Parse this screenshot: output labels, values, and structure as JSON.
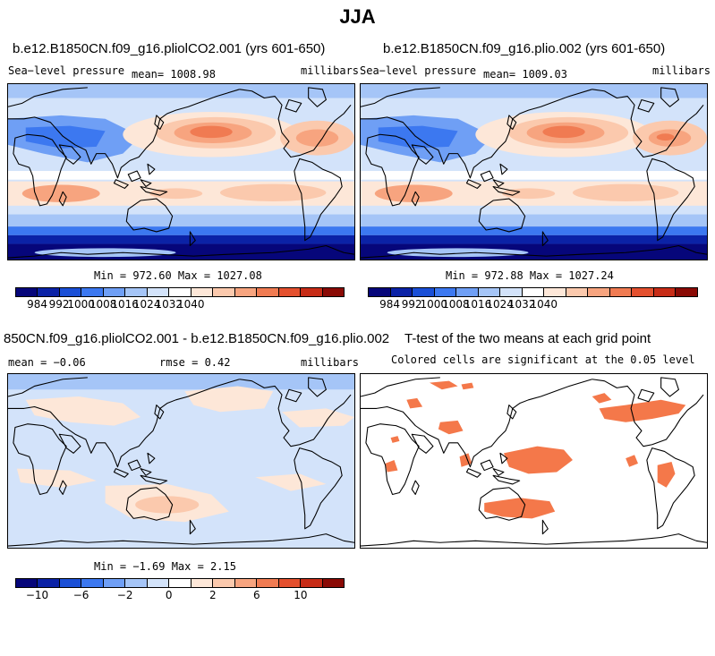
{
  "figure_title": "JJA",
  "panels": {
    "top_left": {
      "title": "b.e12.B1850CN.f09_g16.pliolCO2.001 (yrs 601-650)",
      "variable": "Sea−level pressure",
      "mean": "mean= 1008.98",
      "units": "millibars",
      "minmax": "Min = 972.60 Max = 1027.08"
    },
    "top_right": {
      "title": "b.e12.B1850CN.f09_g16.plio.002 (yrs 601-650)",
      "variable": "Sea−level pressure",
      "mean": "mean= 1009.03",
      "units": "millibars",
      "minmax": "Min = 972.88 Max = 1027.24"
    },
    "bottom_left": {
      "title": "850CN.f09_g16.pliolCO2.001 - b.e12.B1850CN.f09_g16.plio.002",
      "mean": "mean =  −0.06",
      "rmse": "rmse =   0.42",
      "units": "millibars",
      "minmax": "Min =  −1.69 Max =   2.15"
    },
    "bottom_right": {
      "title": "T-test of the two means at each grid point",
      "subtitle": "Colored cells are significant at the 0.05 level"
    }
  },
  "colorbar_slp": {
    "colors": [
      "#06067a",
      "#0b22a6",
      "#1a4fd6",
      "#3c78f0",
      "#6f9ff5",
      "#a5c5f7",
      "#d3e3fa",
      "#ffffff",
      "#fde7d8",
      "#fbc9ad",
      "#f7a47f",
      "#f07b52",
      "#e4502e",
      "#c72c17",
      "#8a0a05"
    ],
    "ticks": [
      "984",
      "992",
      "1000",
      "1008",
      "1016",
      "1024",
      "1032",
      "1040"
    ]
  },
  "colorbar_diff": {
    "colors": [
      "#06067a",
      "#0b22a6",
      "#1a4fd6",
      "#3c78f0",
      "#6f9ff5",
      "#a5c5f7",
      "#d3e3fa",
      "#ffffff",
      "#fde7d8",
      "#fbc9ad",
      "#f7a47f",
      "#f07b52",
      "#e4502e",
      "#c72c17",
      "#8a0a05"
    ],
    "ticks": [
      "−10",
      "−6",
      "−2",
      "0",
      "2",
      "6",
      "10"
    ]
  },
  "significance_color": "#f4784a"
}
